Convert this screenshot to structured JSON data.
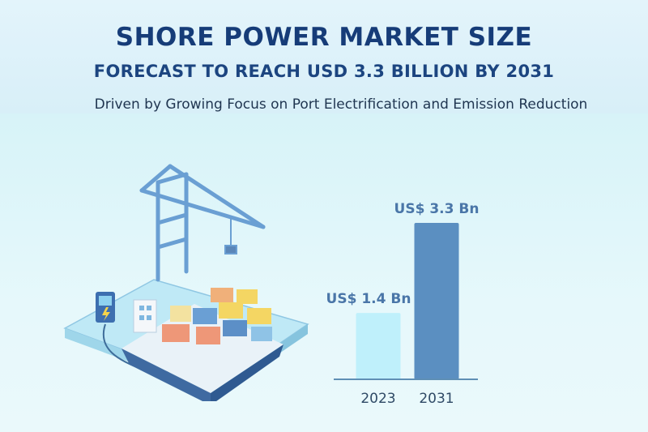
{
  "header": {
    "title": "SHORE POWER MARKET SIZE",
    "subtitle": "FORECAST TO REACH USD 3.3 BILLION BY 2031",
    "tagline": "Driven by Growing Focus on Port Electrification and Emission Reduction"
  },
  "colors": {
    "title": "#163c78",
    "bar_2023": "#bff0fb",
    "bar_2031": "#5b8fc1",
    "label": "#4a76a8",
    "axis": "#5f8fb5"
  },
  "illustration": {
    "icons": [
      "harbor-crane-icon",
      "container-ship-icon",
      "charging-station-icon",
      "power-cable-icon"
    ]
  },
  "chart_data": {
    "type": "bar",
    "categories": [
      "2023",
      "2031"
    ],
    "values": [
      1.4,
      3.3
    ],
    "data_labels": [
      "US$ 1.4 Bn",
      "US$ 3.3 Bn"
    ],
    "title": "",
    "xlabel": "",
    "ylabel": "",
    "ylim": [
      0,
      3.3
    ],
    "grid": false,
    "legend": "none"
  }
}
